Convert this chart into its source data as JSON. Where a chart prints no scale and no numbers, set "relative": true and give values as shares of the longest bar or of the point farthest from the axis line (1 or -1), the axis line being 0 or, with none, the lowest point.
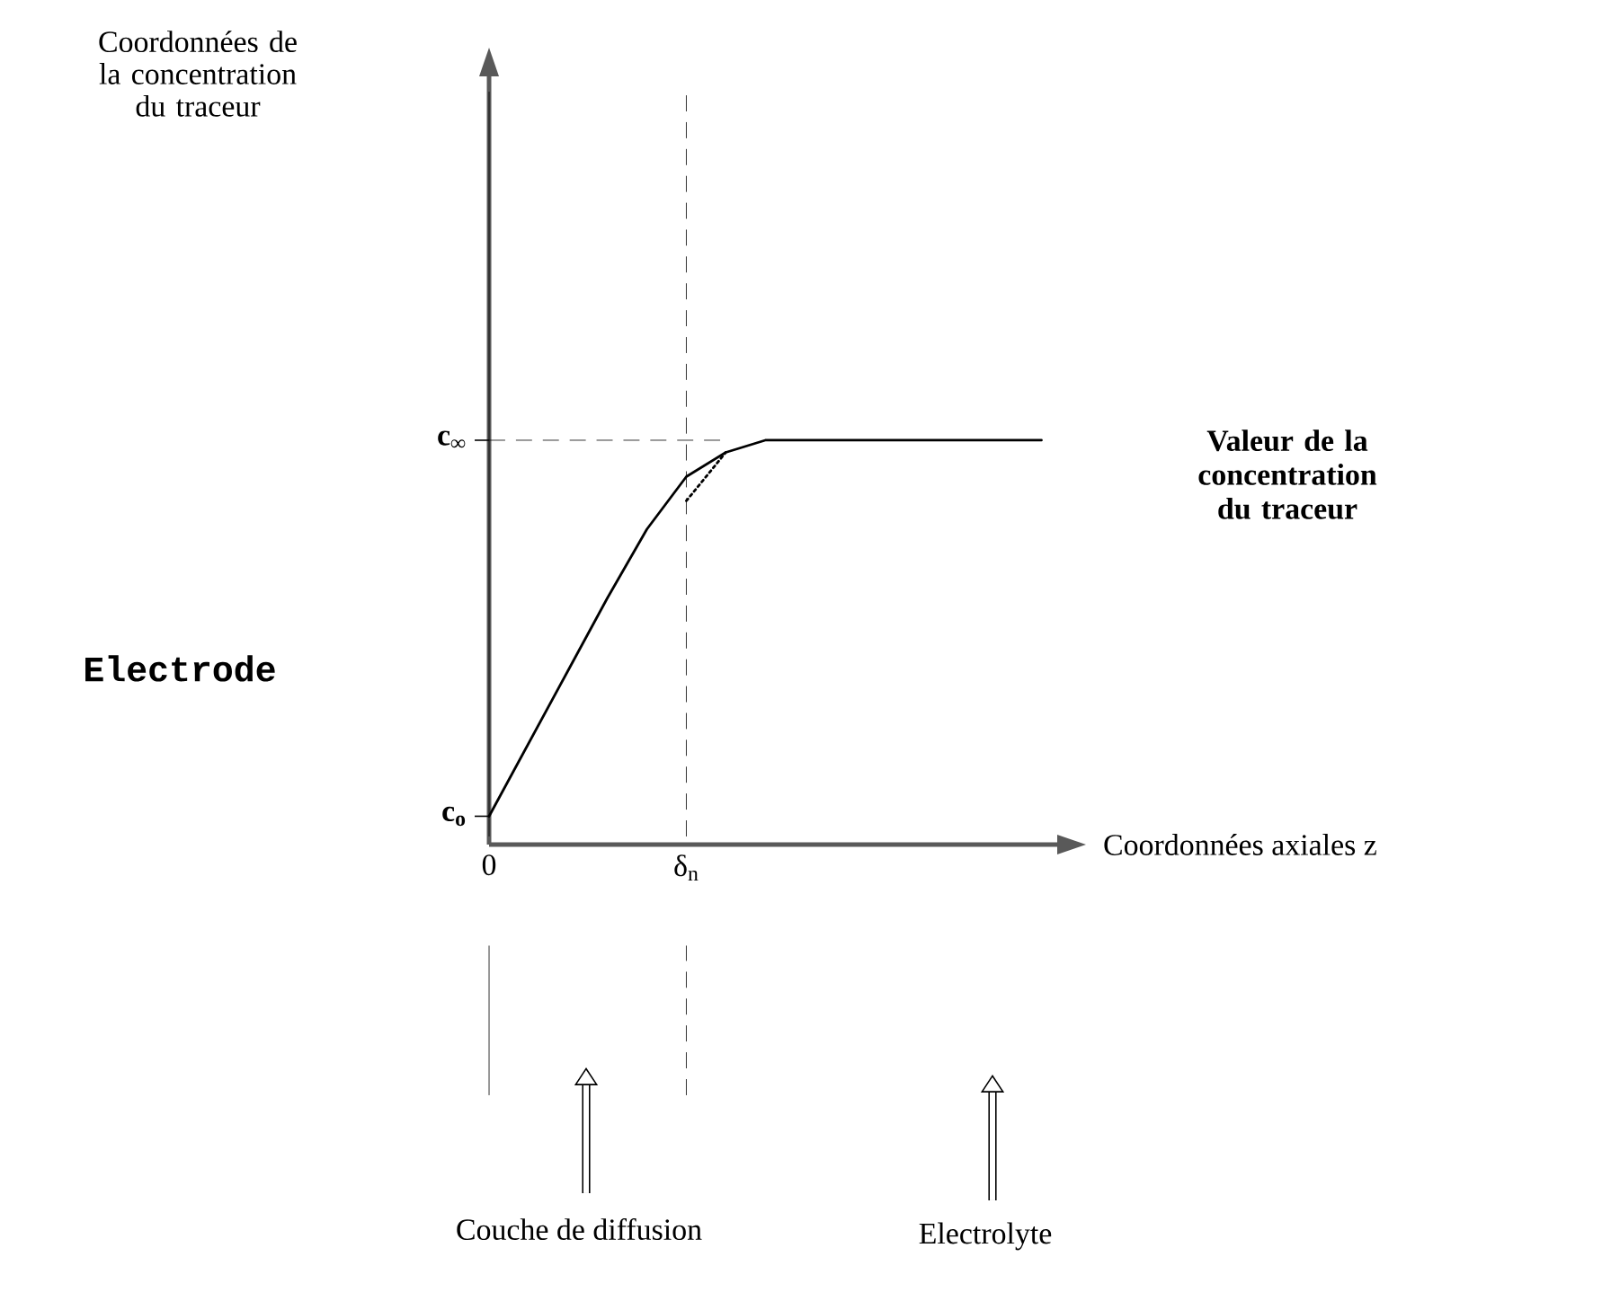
{
  "chart_data": {
    "type": "line",
    "xlabel": "Coordonnées axiales z",
    "categories": [
      "0",
      null,
      null,
      null,
      null,
      "δ$_{n}$",
      null,
      null,
      null,
      null,
      null,
      null,
      null,
      null,
      null
    ],
    "series": [
      {
        "values": [
          0.07,
          0.25,
          0.43,
          0.61,
          0.78,
          0.91,
          0.97,
          1.0,
          1.0,
          1.0,
          1.0,
          1.0,
          1.0,
          1.0,
          1.0
        ],
        "color": "#000000"
      },
      {
        "values": [
          null,
          null,
          null,
          null,
          null,
          0.85,
          0.97,
          null,
          null,
          null,
          null,
          null,
          null,
          null,
          null
        ],
        "line_style": "dotted",
        "color": "#000000"
      }
    ],
    "relative": true,
    "ref_lines": [
      {
        "axis": "y",
        "value": 1,
        "line_style": "dashed"
      },
      {
        "axis": "x",
        "value": "δ$_{n}$",
        "line_style": "dashed"
      },
      {
        "axis": "x",
        "value": "0",
        "line_style": "solid"
      }
    ],
    "annotations": [
      "Valeur de la concentration du traceur",
      "Electrode",
      "Couche de diffusion",
      "Electrolyte",
      "c$_{o}$",
      "c$_{∞}$",
      "Coordonnées de la concentration du traceur"
    ],
    "marker": "none",
    "line_style": "solid"
  }
}
